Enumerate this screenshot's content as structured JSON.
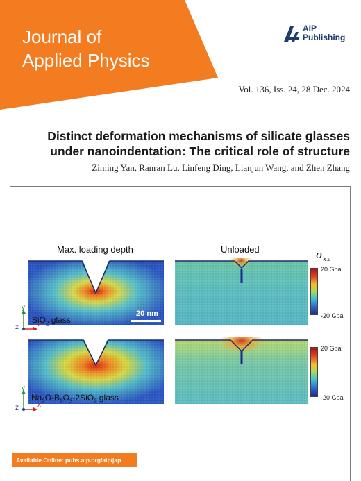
{
  "journal": {
    "title_line1": "Journal of",
    "title_line2": "Applied Physics",
    "publisher_line1": "AIP",
    "publisher_line2": "Publishing",
    "brand_color": "#f47c20"
  },
  "issue": "Vol. 136, Iss. 24, 28 Dec. 2024",
  "article": {
    "title": "Distinct deformation mechanisms of silicate glasses under nanoindentation: The critical role of structure",
    "authors": "Ziming Yan, Ranran Lu, Linfeng Ding, Lianjun Wang, and Zhen Zhang"
  },
  "figure": {
    "col_left": "Max. loading depth",
    "col_right": "Unloaded",
    "stress_symbol": "σ",
    "stress_subscript": "xx",
    "cbar_max": "20 Gpa",
    "cbar_min": "-20 Gpa",
    "scale_bar": "20 nm",
    "material_top_a": "SiO",
    "material_top_sub": "2",
    "material_top_b": " glass",
    "material_bottom": {
      "p1": "Na",
      "s1": "2",
      "p2": "O-B",
      "s2": "2",
      "p3": "O",
      "s3": "3",
      "p4": "-2SiO",
      "s4": "2",
      "p5": " glass"
    },
    "axis_x": "x",
    "axis_y": "y",
    "axis_z": "z",
    "colors": {
      "high": "#b40f0f",
      "mid": "#a8d85a",
      "low": "#1a2a8c"
    }
  },
  "footer": "Available Online: pubs.aip.org/aip/jap"
}
